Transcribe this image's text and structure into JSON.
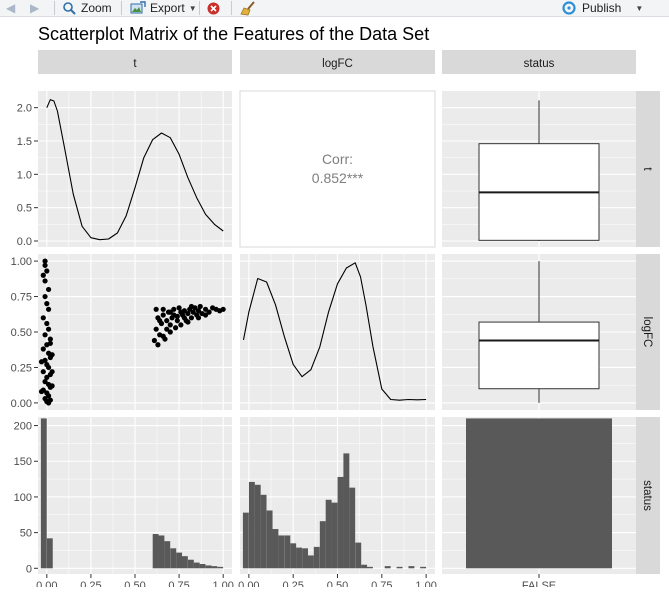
{
  "toolbar": {
    "back_icon": "arrow-left-icon",
    "forward_icon": "arrow-right-icon",
    "zoom_label": "Zoom",
    "export_label": "Export",
    "remove_icon": "remove-plot-icon",
    "clear_icon": "broom-icon",
    "publish_label": "Publish"
  },
  "colors": {
    "panel_bg": "#ebebeb",
    "grid": "#ffffff",
    "strip_bg": "#d9d9d9",
    "bar_fill": "#595959",
    "ink": "#000000",
    "corr_text": "#7f7f7f"
  },
  "chart_data": {
    "type": "scatterplot-matrix",
    "title": "Scatterplot Matrix of the Features of the Data Set",
    "variables": [
      "t",
      "logFC",
      "status"
    ],
    "grid": true,
    "x_ticks": {
      "t": [
        "0.00",
        "0.25",
        "0.50",
        "0.75",
        "1.00"
      ],
      "logFC": [
        "0.00",
        "0.25",
        "0.50",
        "0.75",
        "1.00"
      ],
      "status": [
        "FALSE"
      ]
    },
    "y_ticks": {
      "t": [
        "0.0",
        "0.5",
        "1.0",
        "1.5",
        "2.0"
      ],
      "logFC": [
        "0.00",
        "0.25",
        "0.50",
        "0.75",
        "1.00"
      ],
      "status": [
        "0",
        "50",
        "100",
        "150",
        "200"
      ]
    },
    "panels": {
      "t_density": {
        "type": "line",
        "x": [
          0.0,
          0.02,
          0.04,
          0.06,
          0.1,
          0.15,
          0.2,
          0.25,
          0.3,
          0.35,
          0.4,
          0.45,
          0.5,
          0.55,
          0.6,
          0.65,
          0.7,
          0.75,
          0.8,
          0.85,
          0.9,
          0.95,
          1.0
        ],
        "y": [
          2.0,
          2.12,
          2.1,
          1.95,
          1.4,
          0.7,
          0.22,
          0.05,
          0.02,
          0.03,
          0.12,
          0.38,
          0.8,
          1.25,
          1.52,
          1.62,
          1.55,
          1.3,
          0.95,
          0.65,
          0.4,
          0.25,
          0.15
        ],
        "ylim": [
          -0.09,
          2.25
        ]
      },
      "corr_t_logFC": {
        "type": "text",
        "label": "Corr:",
        "value": "0.852***"
      },
      "box_t_by_status": {
        "type": "boxplot",
        "category": "FALSE",
        "min": 0.0,
        "q1": 0.01,
        "median": 0.73,
        "q3": 1.46,
        "max": 2.11,
        "ylim": [
          -0.09,
          2.25
        ]
      },
      "scatter_logFC_vs_t": {
        "type": "scatter",
        "xlim": [
          -0.05,
          1.05
        ],
        "ylim": [
          -0.05,
          1.05
        ],
        "points": [
          [
            -0.01,
            1.0
          ],
          [
            -0.01,
            0.97
          ],
          [
            0.0,
            0.93
          ],
          [
            -0.02,
            0.9
          ],
          [
            -0.01,
            0.86
          ],
          [
            0.01,
            0.8
          ],
          [
            -0.01,
            0.75
          ],
          [
            0.0,
            0.7
          ],
          [
            0.01,
            0.66
          ],
          [
            -0.02,
            0.6
          ],
          [
            0.0,
            0.56
          ],
          [
            0.01,
            0.52
          ],
          [
            -0.01,
            0.48
          ],
          [
            0.02,
            0.45
          ],
          [
            0.0,
            0.41
          ],
          [
            -0.02,
            0.38
          ],
          [
            0.01,
            0.35
          ],
          [
            0.02,
            0.32
          ],
          [
            -0.01,
            0.3
          ],
          [
            0.0,
            0.27
          ],
          [
            0.01,
            0.25
          ],
          [
            -0.02,
            0.22
          ],
          [
            0.02,
            0.2
          ],
          [
            0.0,
            0.18
          ],
          [
            -0.01,
            0.15
          ],
          [
            0.01,
            0.13
          ],
          [
            0.02,
            0.11
          ],
          [
            -0.02,
            0.09
          ],
          [
            0.0,
            0.07
          ],
          [
            0.01,
            0.05
          ],
          [
            -0.01,
            0.03
          ],
          [
            0.02,
            0.02
          ],
          [
            0.0,
            0.01
          ],
          [
            0.01,
            0.0
          ],
          [
            0.03,
            0.12
          ],
          [
            0.03,
            0.22
          ],
          [
            0.03,
            0.34
          ],
          [
            -0.03,
            0.29
          ],
          [
            -0.03,
            0.08
          ],
          [
            0.02,
            0.42
          ],
          [
            0.61,
            0.44
          ],
          [
            0.62,
            0.52
          ],
          [
            0.63,
            0.6
          ],
          [
            0.62,
            0.66
          ],
          [
            0.64,
            0.48
          ],
          [
            0.65,
            0.56
          ],
          [
            0.66,
            0.62
          ],
          [
            0.67,
            0.45
          ],
          [
            0.68,
            0.58
          ],
          [
            0.69,
            0.64
          ],
          [
            0.7,
            0.5
          ],
          [
            0.71,
            0.6
          ],
          [
            0.72,
            0.66
          ],
          [
            0.73,
            0.53
          ],
          [
            0.74,
            0.61
          ],
          [
            0.75,
            0.67
          ],
          [
            0.76,
            0.55
          ],
          [
            0.77,
            0.62
          ],
          [
            0.78,
            0.65
          ],
          [
            0.79,
            0.58
          ],
          [
            0.8,
            0.63
          ],
          [
            0.81,
            0.66
          ],
          [
            0.82,
            0.6
          ],
          [
            0.83,
            0.64
          ],
          [
            0.84,
            0.67
          ],
          [
            0.85,
            0.62
          ],
          [
            0.86,
            0.65
          ],
          [
            0.87,
            0.68
          ],
          [
            0.88,
            0.63
          ],
          [
            0.9,
            0.66
          ],
          [
            0.92,
            0.64
          ],
          [
            0.94,
            0.67
          ],
          [
            0.96,
            0.66
          ],
          [
            0.98,
            0.65
          ],
          [
            1.0,
            0.66
          ],
          [
            0.63,
            0.41
          ],
          [
            0.66,
            0.47
          ],
          [
            0.7,
            0.55
          ],
          [
            0.74,
            0.58
          ],
          [
            0.78,
            0.6
          ],
          [
            0.64,
            0.58
          ],
          [
            0.68,
            0.52
          ],
          [
            0.72,
            0.62
          ],
          [
            0.76,
            0.64
          ],
          [
            0.8,
            0.57
          ],
          [
            0.66,
            0.66
          ],
          [
            0.7,
            0.64
          ],
          [
            0.82,
            0.68
          ],
          [
            0.86,
            0.6
          ],
          [
            0.9,
            0.62
          ]
        ]
      },
      "logFC_density": {
        "type": "line",
        "x": [
          -0.03,
          0.0,
          0.05,
          0.1,
          0.15,
          0.2,
          0.25,
          0.3,
          0.35,
          0.4,
          0.45,
          0.5,
          0.55,
          0.6,
          0.63,
          0.66,
          0.7,
          0.75,
          0.8,
          0.85,
          0.9,
          0.95,
          1.0
        ],
        "y": [
          1.8,
          2.6,
          3.55,
          3.45,
          2.8,
          1.9,
          1.1,
          0.75,
          0.95,
          1.6,
          2.6,
          3.4,
          3.85,
          4.0,
          3.6,
          2.8,
          1.6,
          0.4,
          0.1,
          0.08,
          0.1,
          0.09,
          0.1
        ],
        "ylim": [
          -0.2,
          4.25
        ]
      },
      "box_logFC_by_status": {
        "type": "boxplot",
        "category": "FALSE",
        "min": 0.0,
        "q1": 0.1,
        "median": 0.44,
        "q3": 0.57,
        "max": 1.0,
        "ylim": [
          -0.05,
          1.05
        ]
      },
      "hist_t": {
        "type": "histogram",
        "bin_width": 0.0333,
        "x": [
          -0.017,
          0.017,
          0.05,
          0.083,
          0.117,
          0.15,
          0.183,
          0.217,
          0.25,
          0.283,
          0.317,
          0.35,
          0.383,
          0.417,
          0.45,
          0.483,
          0.517,
          0.55,
          0.583,
          0.617,
          0.65,
          0.683,
          0.717,
          0.75,
          0.783,
          0.817,
          0.85,
          0.883,
          0.917,
          0.95,
          0.983
        ],
        "values": [
          210,
          42,
          0,
          0,
          0,
          0,
          0,
          0,
          0,
          0,
          0,
          0,
          0,
          0,
          0,
          0,
          0,
          0,
          0,
          48,
          46,
          38,
          28,
          22,
          17,
          12,
          8,
          6,
          4,
          3,
          2
        ],
        "ylim": [
          -8,
          212
        ]
      },
      "hist_logFC": {
        "type": "histogram",
        "bin_width": 0.0333,
        "x": [
          -0.017,
          0.017,
          0.05,
          0.083,
          0.117,
          0.15,
          0.183,
          0.217,
          0.25,
          0.283,
          0.317,
          0.35,
          0.383,
          0.417,
          0.45,
          0.483,
          0.517,
          0.55,
          0.583,
          0.617,
          0.65,
          0.683,
          0.717,
          0.75,
          0.783,
          0.817,
          0.85,
          0.883,
          0.917,
          0.95,
          0.983
        ],
        "values": [
          78,
          121,
          117,
          103,
          81,
          55,
          46,
          46,
          35,
          29,
          28,
          18,
          30,
          66,
          96,
          92,
          128,
          161,
          113,
          36,
          5,
          2,
          0,
          0,
          3,
          0,
          2,
          0,
          3,
          0,
          2
        ],
        "ylim": [
          -8,
          212
        ]
      },
      "bar_status": {
        "type": "bar",
        "categories": [
          "FALSE"
        ],
        "values": [
          210
        ],
        "ylim": [
          -8,
          212
        ]
      }
    }
  }
}
